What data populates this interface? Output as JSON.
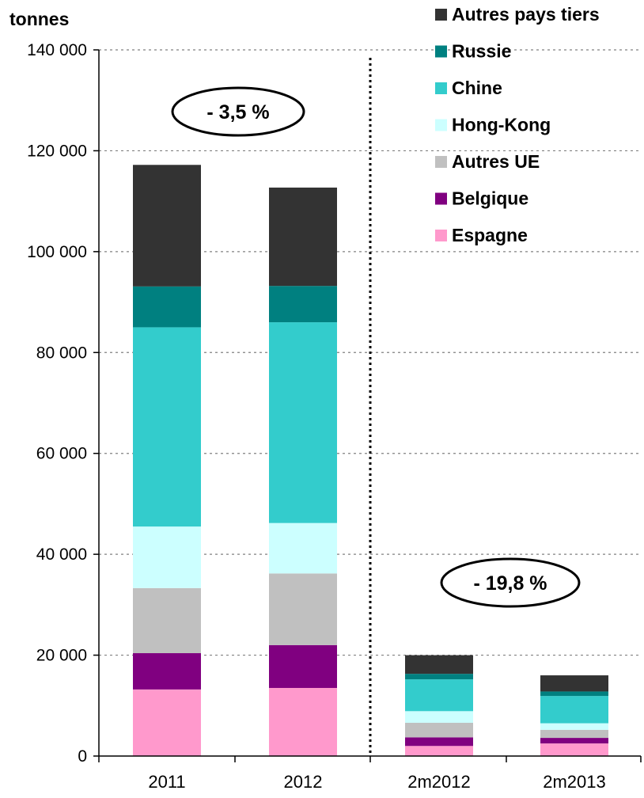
{
  "chart_data": {
    "type": "bar",
    "stacked": true,
    "ylabel": "tonnes",
    "ylim": [
      0,
      140000
    ],
    "yticks": [
      0,
      20000,
      40000,
      60000,
      80000,
      100000,
      120000,
      140000
    ],
    "ytick_labels": [
      "0",
      "20 000",
      "40 000",
      "60 000",
      "80 000",
      "100 000",
      "120 000",
      "140 000"
    ],
    "categories": [
      "2011",
      "2012",
      "2m2012",
      "2m2013"
    ],
    "grid": true,
    "legend_position": "top-right",
    "series": [
      {
        "name": "Espagne",
        "color": "#FF99CC",
        "values": [
          13200,
          13500,
          2000,
          2500
        ]
      },
      {
        "name": "Belgique",
        "color": "#800080",
        "values": [
          7200,
          8500,
          1700,
          1100
        ]
      },
      {
        "name": "Autres UE",
        "color": "#C0C0C0",
        "values": [
          12900,
          14200,
          2900,
          1600
        ]
      },
      {
        "name": "Hong-Kong",
        "color": "#CCFFFF",
        "values": [
          12200,
          10000,
          2300,
          1300
        ]
      },
      {
        "name": "Chine",
        "color": "#33CCCC",
        "values": [
          39500,
          39800,
          6300,
          5400
        ]
      },
      {
        "name": "Russie",
        "color": "#008080",
        "values": [
          8100,
          7200,
          1100,
          900
        ]
      },
      {
        "name": "Autres pays tiers",
        "color": "#333333",
        "values": [
          24100,
          19500,
          3700,
          3200
        ]
      }
    ],
    "annotations": [
      {
        "text": "- 3,5 %"
      },
      {
        "text": "- 19,8 %"
      }
    ]
  }
}
